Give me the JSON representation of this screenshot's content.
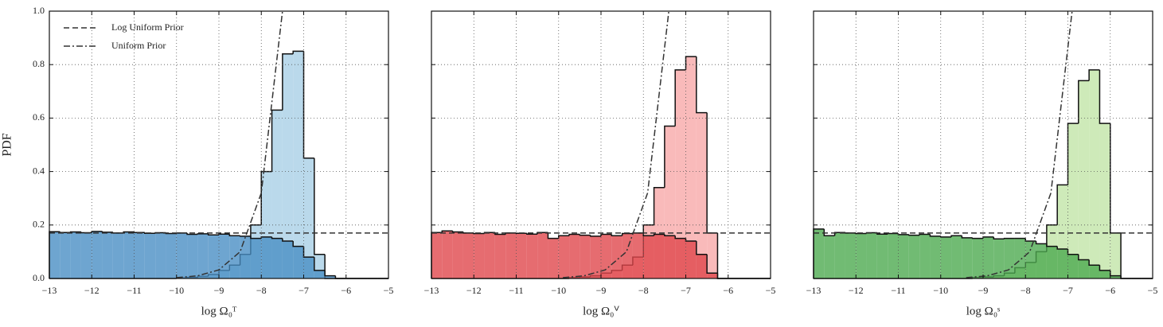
{
  "chart_data": [
    {
      "type": "histogram",
      "xlabel": "log Ω₀ᵀ",
      "ylabel": "PDF",
      "bins": [
        -13,
        -12.75,
        -12.5,
        -12.25,
        -12,
        -11.75,
        -11.5,
        -11.25,
        -11,
        -10.75,
        -10.5,
        -10.25,
        -10,
        -9.75,
        -9.5,
        -9.25,
        -9,
        -8.75,
        -8.5,
        -8.25,
        -8,
        -7.75,
        -7.5,
        -7.25,
        -7,
        -6.75,
        -6.5,
        -6.25,
        -6,
        -5.75,
        -5.5,
        -5.25,
        -5
      ],
      "series": [
        {
          "color": "#a9cfe6",
          "values": [
            0,
            0,
            0,
            0,
            0,
            0,
            0,
            0,
            0,
            0,
            0,
            0,
            0.002,
            0.004,
            0.008,
            0.015,
            0.03,
            0.05,
            0.09,
            0.2,
            0.4,
            0.63,
            0.84,
            0.85,
            0.45,
            0.09,
            0,
            0,
            0,
            0,
            0,
            0
          ]
        },
        {
          "color": "#4a8fc4",
          "values": [
            0.175,
            0.172,
            0.174,
            0.171,
            0.176,
            0.173,
            0.17,
            0.174,
            0.172,
            0.169,
            0.171,
            0.168,
            0.17,
            0.165,
            0.167,
            0.163,
            0.166,
            0.16,
            0.158,
            0.15,
            0.155,
            0.15,
            0.14,
            0.12,
            0.08,
            0.03,
            0.01,
            0,
            0,
            0,
            0,
            0
          ]
        }
      ],
      "lines": [
        {
          "name": "Log Uniform Prior",
          "style": "dashed",
          "x": [
            -13,
            -5
          ],
          "values": [
            0.17,
            0.17
          ]
        },
        {
          "name": "Uniform Prior",
          "style": "dashdot",
          "x": [
            -10,
            -9.5,
            -9,
            -8.5,
            -8,
            -7.5
          ],
          "values": [
            0.003,
            0.01,
            0.032,
            0.1,
            0.32,
            1.0
          ]
        }
      ],
      "legend": "upper left",
      "ytick_labels": true,
      "xlim": [
        -13,
        -5
      ],
      "ylim": [
        0,
        1
      ],
      "grid": true,
      "xticks": [
        {
          "value": -13,
          "label": "−13"
        },
        {
          "value": -12,
          "label": "−12"
        },
        {
          "value": -11,
          "label": "−11"
        },
        {
          "value": -10,
          "label": "−10"
        },
        {
          "value": -9,
          "label": "−9"
        },
        {
          "value": -8,
          "label": "−8"
        },
        {
          "value": -7,
          "label": "−7"
        },
        {
          "value": -6,
          "label": "−6"
        },
        {
          "value": -5,
          "label": "−5"
        }
      ],
      "yticks": [
        {
          "value": 0,
          "label": "0.0"
        },
        0.2,
        0.4,
        0.6,
        0.8,
        {
          "value": 1,
          "label": "1.0"
        }
      ]
    },
    {
      "type": "histogram",
      "xlabel": "log Ω₀ⱽ",
      "bins": [
        -13,
        -12.75,
        -12.5,
        -12.25,
        -12,
        -11.75,
        -11.5,
        -11.25,
        -11,
        -10.75,
        -10.5,
        -10.25,
        -10,
        -9.75,
        -9.5,
        -9.25,
        -9,
        -8.75,
        -8.5,
        -8.25,
        -8,
        -7.75,
        -7.5,
        -7.25,
        -7,
        -6.75,
        -6.5,
        -6.25,
        -6,
        -5.75,
        -5.5,
        -5.25,
        -5
      ],
      "series": [
        {
          "color": "#f7a9a9",
          "values": [
            0,
            0,
            0,
            0,
            0,
            0,
            0,
            0,
            0,
            0,
            0,
            0,
            0,
            0.003,
            0.006,
            0.01,
            0.02,
            0.03,
            0.05,
            0.08,
            0.2,
            0.34,
            0.57,
            0.78,
            0.83,
            0.62,
            0.17,
            0,
            0,
            0,
            0,
            0
          ]
        },
        {
          "color": "#e0474c",
          "values": [
            0.172,
            0.178,
            0.174,
            0.17,
            0.168,
            0.172,
            0.165,
            0.17,
            0.169,
            0.166,
            0.172,
            0.15,
            0.16,
            0.165,
            0.162,
            0.158,
            0.165,
            0.16,
            0.168,
            0.17,
            0.16,
            0.165,
            0.16,
            0.15,
            0.14,
            0.09,
            0.02,
            0,
            0,
            0,
            0,
            0
          ]
        }
      ],
      "lines": [
        {
          "style": "dashed",
          "x": [
            -13,
            -5
          ],
          "values": [
            0.17,
            0.17
          ]
        },
        {
          "style": "dashdot",
          "x": [
            -9.9,
            -9.4,
            -8.9,
            -8.4,
            -7.9,
            -7.4
          ],
          "values": [
            0.003,
            0.01,
            0.032,
            0.1,
            0.32,
            1.0
          ]
        }
      ],
      "ytick_labels": false,
      "xlim": [
        -13,
        -5
      ],
      "ylim": [
        0,
        1
      ],
      "grid": true,
      "xticks": [
        {
          "value": -13,
          "label": "−13"
        },
        {
          "value": -12,
          "label": "−12"
        },
        {
          "value": -11,
          "label": "−11"
        },
        {
          "value": -10,
          "label": "−10"
        },
        {
          "value": -9,
          "label": "−9"
        },
        {
          "value": -8,
          "label": "−8"
        },
        {
          "value": -7,
          "label": "−7"
        },
        {
          "value": -6,
          "label": "−6"
        },
        {
          "value": -5,
          "label": "−5"
        }
      ],
      "yticks": [
        {
          "value": 0,
          "label": "0.0"
        },
        0.2,
        0.4,
        0.6,
        0.8,
        {
          "value": 1,
          "label": "1.0"
        }
      ]
    },
    {
      "type": "histogram",
      "xlabel": "log Ω₀ˢ",
      "bins": [
        -13,
        -12.75,
        -12.5,
        -12.25,
        -12,
        -11.75,
        -11.5,
        -11.25,
        -11,
        -10.75,
        -10.5,
        -10.25,
        -10,
        -9.75,
        -9.5,
        -9.25,
        -9,
        -8.75,
        -8.5,
        -8.25,
        -8,
        -7.75,
        -7.5,
        -7.25,
        -7,
        -6.75,
        -6.5,
        -6.25,
        -6,
        -5.75,
        -5.5,
        -5.25,
        -5
      ],
      "series": [
        {
          "color": "#c2e5a8",
          "values": [
            0,
            0,
            0,
            0,
            0,
            0,
            0,
            0,
            0,
            0,
            0,
            0,
            0,
            0,
            0,
            0.003,
            0.006,
            0.01,
            0.02,
            0.04,
            0.06,
            0.1,
            0.2,
            0.35,
            0.58,
            0.74,
            0.78,
            0.58,
            0.17,
            0,
            0,
            0
          ]
        },
        {
          "color": "#4daa50",
          "values": [
            0.185,
            0.16,
            0.172,
            0.17,
            0.168,
            0.171,
            0.166,
            0.168,
            0.164,
            0.162,
            0.165,
            0.158,
            0.155,
            0.16,
            0.152,
            0.15,
            0.155,
            0.148,
            0.15,
            0.15,
            0.14,
            0.13,
            0.12,
            0.11,
            0.09,
            0.07,
            0.05,
            0.03,
            0.01,
            0,
            0,
            0
          ]
        }
      ],
      "lines": [
        {
          "style": "dashed",
          "x": [
            -13,
            -5
          ],
          "values": [
            0.17,
            0.17
          ]
        },
        {
          "style": "dashdot",
          "x": [
            -9.4,
            -8.9,
            -8.4,
            -7.9,
            -7.4,
            -6.9
          ],
          "values": [
            0.003,
            0.01,
            0.032,
            0.1,
            0.32,
            1.0
          ]
        }
      ],
      "ytick_labels": false,
      "xlim": [
        -13,
        -5
      ],
      "ylim": [
        0,
        1
      ],
      "grid": true,
      "xticks": [
        {
          "value": -13,
          "label": "−13"
        },
        {
          "value": -12,
          "label": "−12"
        },
        {
          "value": -11,
          "label": "−11"
        },
        {
          "value": -10,
          "label": "−10"
        },
        {
          "value": -9,
          "label": "−9"
        },
        {
          "value": -8,
          "label": "−8"
        },
        {
          "value": -7,
          "label": "−7"
        },
        {
          "value": -6,
          "label": "−6"
        },
        {
          "value": -5,
          "label": "−5"
        }
      ],
      "yticks": [
        {
          "value": 0,
          "label": "0.0"
        },
        0.2,
        0.4,
        0.6,
        0.8,
        {
          "value": 1,
          "label": "1.0"
        }
      ]
    }
  ]
}
